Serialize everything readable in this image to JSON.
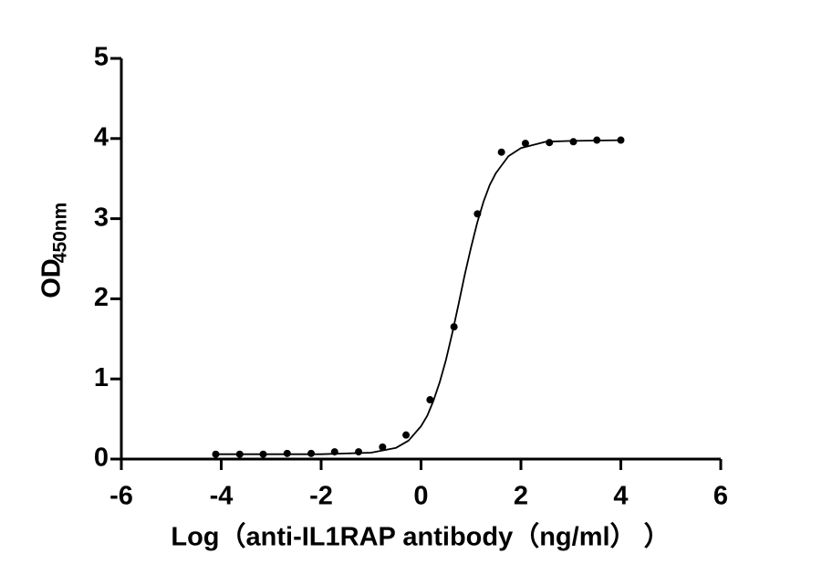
{
  "chart_data": {
    "type": "scatter",
    "x_label": "Log（anti-IL1RAP antibody（ng/ml） ）",
    "y_label": "OD",
    "y_label_subscript": "450nm",
    "x": [
      -4.11,
      -3.63,
      -3.16,
      -2.68,
      -2.2,
      -1.73,
      -1.25,
      -0.77,
      -0.3,
      0.18,
      0.66,
      1.13,
      1.61,
      2.09,
      2.57,
      3.05,
      3.52,
      4.0
    ],
    "values": [
      0.06,
      0.06,
      0.06,
      0.07,
      0.07,
      0.09,
      0.09,
      0.15,
      0.3,
      0.74,
      1.65,
      3.06,
      3.83,
      3.94,
      3.95,
      3.96,
      3.98,
      3.98
    ],
    "color": "#000000",
    "curve": {
      "x": [
        -4.11,
        -3,
        -2,
        -1,
        -0.5,
        -0.25,
        0,
        0.125,
        0.25,
        0.375,
        0.5,
        0.625,
        0.75,
        0.875,
        1,
        1.125,
        1.25,
        1.375,
        1.5,
        1.75,
        2,
        2.5,
        3,
        4
      ],
      "values": [
        0.06,
        0.06,
        0.06,
        0.08,
        0.14,
        0.23,
        0.41,
        0.54,
        0.73,
        0.96,
        1.24,
        1.57,
        1.93,
        2.3,
        2.64,
        2.95,
        3.21,
        3.42,
        3.57,
        3.78,
        3.88,
        3.96,
        3.97,
        3.98
      ]
    },
    "xlim": [
      -6,
      6
    ],
    "xticks": [
      -6,
      -4,
      -2,
      0,
      2,
      4,
      6
    ],
    "ylim": [
      0,
      5
    ],
    "yticks": [
      0,
      1,
      2,
      3,
      4,
      5
    ],
    "grid": false
  }
}
